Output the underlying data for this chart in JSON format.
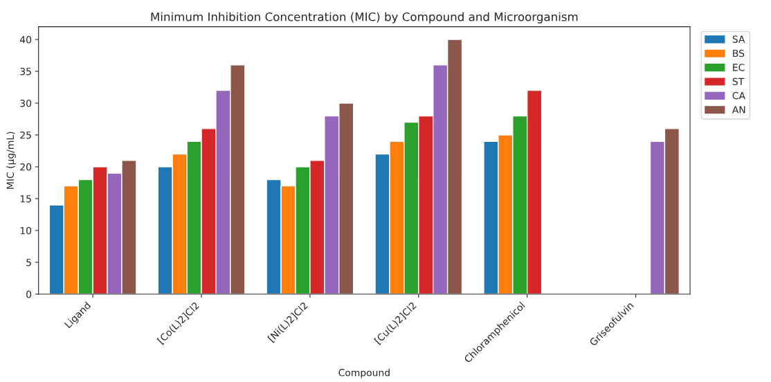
{
  "chart_data": {
    "type": "bar",
    "title": "Minimum Inhibition Concentration (MIC) by Compound and Microorganism",
    "xlabel": "Compound",
    "ylabel": "MIC (µg/mL)",
    "categories": [
      "Ligand",
      "[Co(L)2]Cl2",
      "[Ni(L)2]Cl2",
      "[Cu(L)2]Cl2",
      "Chloramphenicol",
      "Griseofulvin"
    ],
    "series": [
      {
        "name": "SA",
        "color": "#1f77b4",
        "values": [
          14,
          20,
          18,
          22,
          24,
          null
        ]
      },
      {
        "name": "BS",
        "color": "#ff7f0e",
        "values": [
          17,
          22,
          17,
          24,
          25,
          null
        ]
      },
      {
        "name": "EC",
        "color": "#2ca02c",
        "values": [
          18,
          24,
          20,
          27,
          28,
          null
        ]
      },
      {
        "name": "ST",
        "color": "#d62728",
        "values": [
          20,
          26,
          21,
          28,
          32,
          null
        ]
      },
      {
        "name": "CA",
        "color": "#9467bd",
        "values": [
          19,
          32,
          28,
          36,
          null,
          24
        ]
      },
      {
        "name": "AN",
        "color": "#8c564b",
        "values": [
          21,
          36,
          30,
          40,
          null,
          26
        ]
      }
    ],
    "ylim": [
      0,
      42
    ],
    "yticks": [
      0,
      5,
      10,
      15,
      20,
      25,
      30,
      35,
      40
    ],
    "legend": "top right",
    "grid": false
  }
}
